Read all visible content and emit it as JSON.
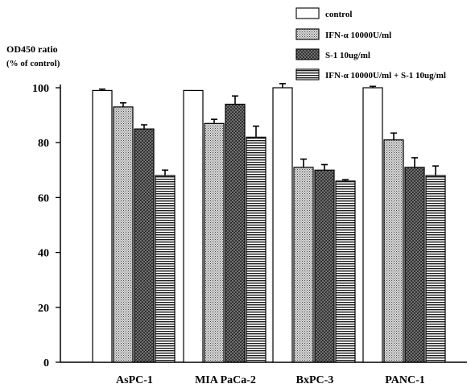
{
  "chart_data": {
    "type": "bar",
    "title": "",
    "ylabel": "OD450 ratio",
    "ylabel_sub": "(% of control)",
    "xlabel": "",
    "ylim": [
      0,
      100
    ],
    "yticks": [
      0,
      20,
      40,
      60,
      80,
      100
    ],
    "categories": [
      "AsPC-1",
      "MIA PaCa-2",
      "BxPC-3",
      "PANC-1"
    ],
    "legend_position": "top-right",
    "series": [
      {
        "name": "control",
        "pattern": "white",
        "values": [
          99,
          99,
          100,
          100
        ],
        "errors": [
          0.5,
          0,
          1.5,
          0.5
        ]
      },
      {
        "name": "IFN-α 10000U/ml",
        "pattern": "dots",
        "values": [
          93,
          87,
          71,
          81
        ],
        "errors": [
          1.5,
          1.5,
          3,
          2.5
        ]
      },
      {
        "name": "S-1 10ug/ml",
        "pattern": "crosshatch",
        "values": [
          85,
          94,
          70,
          71
        ],
        "errors": [
          1.5,
          3,
          2,
          3.5
        ]
      },
      {
        "name": "IFN-α 10000U/ml + S-1 10ug/ml",
        "pattern": "horizontal-lines",
        "values": [
          68,
          82,
          66,
          68
        ],
        "errors": [
          2,
          4,
          0.5,
          3.5
        ]
      }
    ]
  }
}
